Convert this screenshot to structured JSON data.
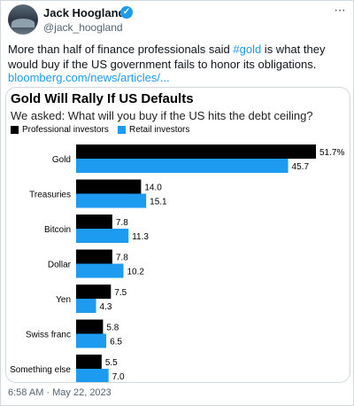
{
  "tweet": {
    "name": "Jack Hoogland",
    "handle": "@jack_hoogland",
    "text_before": "More than half of finance professionals said ",
    "hashtag": "#gold",
    "text_after": " is what they would buy if the US government fails to honor its obligations.",
    "link": "bloomberg.com/news/articles/...",
    "timestamp": "6:58 AM · May 22, 2023",
    "verified_glyph": "✓",
    "more_glyph": "···"
  },
  "chart_data": {
    "type": "bar",
    "orientation": "horizontal",
    "title": "Gold Will Rally If US Defaults",
    "subtitle": "We asked: What will you buy if the US hits the debt ceiling?",
    "categories": [
      "Gold",
      "Treasuries",
      "Bitcoin",
      "Dollar",
      "Yen",
      "Swiss franc",
      "Something else"
    ],
    "series": [
      {
        "name": "Professional investors",
        "color": "#000000",
        "values": [
          51.7,
          14.0,
          7.8,
          7.8,
          7.5,
          5.8,
          5.5
        ],
        "labels": [
          "51.7%",
          "14.0",
          "7.8",
          "7.8",
          "7.5",
          "5.8",
          "5.5"
        ]
      },
      {
        "name": "Retail investors",
        "color": "#1d9bf0",
        "values": [
          45.7,
          15.1,
          11.3,
          10.2,
          4.3,
          6.5,
          7.0
        ],
        "labels": [
          "45.7",
          "15.1",
          "11.3",
          "10.2",
          "4.3",
          "6.5",
          "7.0"
        ]
      }
    ],
    "xlim": [
      0,
      51.7
    ],
    "legend_position": "top-left",
    "grid": false
  }
}
